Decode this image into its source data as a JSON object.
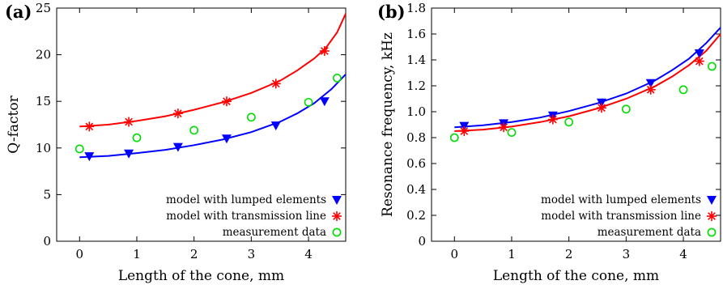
{
  "chart_data": [
    {
      "panel_label": "(a)",
      "type": "scatter",
      "xlabel": "Length of the cone, mm",
      "ylabel": "Q-factor",
      "xlim": [
        -0.4,
        4.65
      ],
      "ylim": [
        0,
        25
      ],
      "xticks": [
        0,
        1,
        2,
        3,
        4
      ],
      "yticks": [
        0,
        5,
        10,
        15,
        20,
        25
      ],
      "legend_position": "bottom-right",
      "series": [
        {
          "name": "model with lumped elements",
          "marker": "triangle-down",
          "color": "#0000ff",
          "x": [
            0.17,
            0.86,
            1.72,
            2.57,
            3.43,
            4.28
          ],
          "y": [
            9.1,
            9.4,
            10.1,
            11.0,
            12.4,
            15.0
          ]
        },
        {
          "name": "model with transmission line",
          "marker": "asterisk",
          "color": "#ff0000",
          "x": [
            0.17,
            0.86,
            1.72,
            2.57,
            3.43,
            4.28
          ],
          "y": [
            12.3,
            12.8,
            13.7,
            15.0,
            16.9,
            20.4
          ]
        },
        {
          "name": "measurement data",
          "marker": "circle",
          "color": "#00dd00",
          "x": [
            0,
            1,
            2,
            3,
            4,
            4.5
          ],
          "y": [
            9.9,
            11.1,
            11.9,
            13.3,
            14.9,
            17.5
          ]
        }
      ],
      "fit_curves": [
        {
          "color": "#0000ff",
          "x": [
            0,
            0.5,
            1,
            1.5,
            2,
            2.5,
            3,
            3.5,
            3.8,
            4.1,
            4.4,
            4.65
          ],
          "y": [
            9.0,
            9.15,
            9.45,
            9.8,
            10.3,
            10.9,
            11.7,
            12.8,
            13.7,
            14.8,
            16.3,
            17.9
          ]
        },
        {
          "color": "#ff0000",
          "x": [
            0,
            0.5,
            1,
            1.5,
            2,
            2.5,
            3,
            3.5,
            3.8,
            4.1,
            4.3,
            4.5,
            4.65
          ],
          "y": [
            12.3,
            12.5,
            12.9,
            13.4,
            14.1,
            14.9,
            15.9,
            17.2,
            18.3,
            19.6,
            20.7,
            22.4,
            24.4
          ]
        }
      ]
    },
    {
      "panel_label": "(b)",
      "type": "scatter",
      "xlabel": "Length of the cone, mm",
      "ylabel": "Resonance frequency, kHz",
      "xlim": [
        -0.4,
        4.65
      ],
      "ylim": [
        0,
        1.8
      ],
      "xticks": [
        0,
        1,
        2,
        3,
        4
      ],
      "yticks": [
        "0",
        "0.2",
        "0.4",
        "0.6",
        "0.8",
        "1.0",
        "1.2",
        "1.4",
        "1.6",
        "1.8"
      ],
      "legend_position": "bottom-right",
      "series": [
        {
          "name": "model with lumped elements",
          "marker": "triangle-down",
          "color": "#0000ff",
          "x": [
            0.17,
            0.86,
            1.72,
            2.57,
            3.43,
            4.28
          ],
          "y": [
            0.89,
            0.91,
            0.97,
            1.07,
            1.22,
            1.45
          ]
        },
        {
          "name": "model with transmission line",
          "marker": "asterisk",
          "color": "#ff0000",
          "x": [
            0.17,
            0.86,
            1.72,
            2.57,
            3.43,
            4.28
          ],
          "y": [
            0.85,
            0.88,
            0.94,
            1.03,
            1.17,
            1.39
          ]
        },
        {
          "name": "measurement data",
          "marker": "circle",
          "color": "#00dd00",
          "x": [
            0,
            1,
            2,
            3,
            4,
            4.5
          ],
          "y": [
            0.8,
            0.84,
            0.92,
            1.02,
            1.17,
            1.35
          ]
        }
      ],
      "fit_curves": [
        {
          "color": "#0000ff",
          "x": [
            0,
            0.5,
            1,
            1.5,
            2,
            2.5,
            3,
            3.5,
            3.8,
            4.1,
            4.4,
            4.65
          ],
          "y": [
            0.88,
            0.895,
            0.92,
            0.955,
            1.005,
            1.065,
            1.14,
            1.24,
            1.32,
            1.41,
            1.53,
            1.65
          ]
        },
        {
          "color": "#ff0000",
          "x": [
            0,
            0.5,
            1,
            1.5,
            2,
            2.5,
            3,
            3.5,
            3.8,
            4.1,
            4.4,
            4.65
          ],
          "y": [
            0.85,
            0.862,
            0.885,
            0.92,
            0.965,
            1.025,
            1.1,
            1.195,
            1.27,
            1.36,
            1.47,
            1.6
          ]
        }
      ]
    }
  ]
}
